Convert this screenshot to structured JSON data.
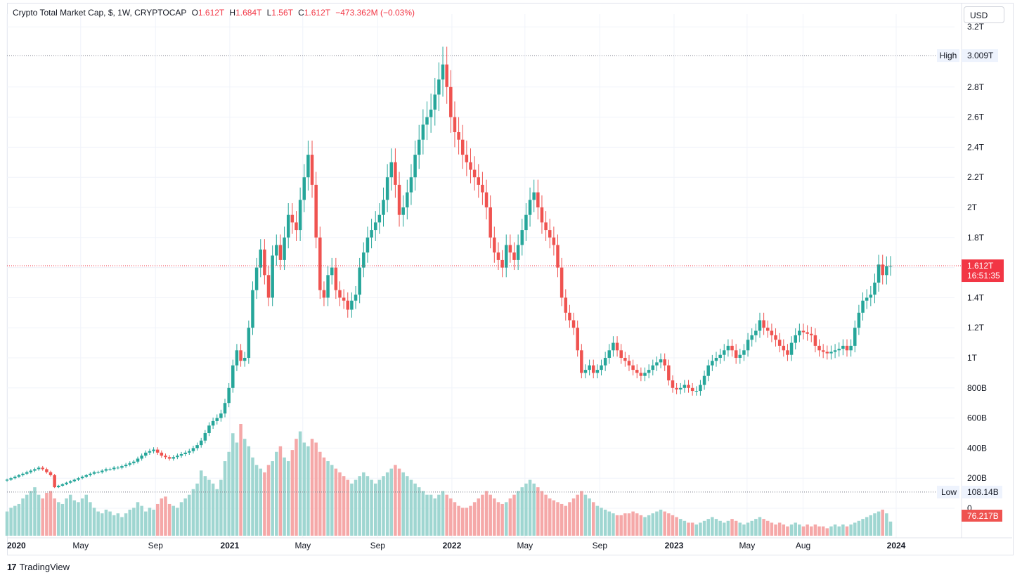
{
  "legend": {
    "title": "Crypto Total Market Cap, $, 1W, CRYPTOCAP",
    "open_label": "O",
    "open": "1.612T",
    "high_label": "H",
    "high": "1.684T",
    "low_label": "L",
    "low": "1.56T",
    "close_label": "C",
    "close": "1.612T",
    "change": "−473.362M (−0.03%)"
  },
  "currency": "USD",
  "footer": {
    "brand": "TradingView",
    "logo": "17"
  },
  "colors": {
    "up": "#26a69a",
    "down": "#ef5350",
    "up_volume": "#9fd6d1",
    "down_volume": "#f5a8a8",
    "grid": "#f0f3fa"
  },
  "chart_data": {
    "type": "candlestick",
    "interval": "1W",
    "x_range": [
      "2020-01-01",
      "2024-01-01"
    ],
    "y_range": [
      0,
      3.2
    ],
    "y_unit": "trillion USD",
    "y_ticks": [
      "0",
      "200B",
      "400B",
      "600B",
      "800B",
      "1T",
      "1.2T",
      "1.4T",
      "1.6T",
      "1.8T",
      "2T",
      "2.2T",
      "2.4T",
      "2.6T",
      "2.8T",
      "3.2T"
    ],
    "x_ticks": [
      {
        "label": "2020",
        "date": "2020-01-01",
        "bold": true
      },
      {
        "label": "May",
        "date": "2020-05-01",
        "bold": false
      },
      {
        "label": "Sep",
        "date": "2020-09-01",
        "bold": false
      },
      {
        "label": "2021",
        "date": "2021-01-01",
        "bold": true
      },
      {
        "label": "May",
        "date": "2021-05-01",
        "bold": false
      },
      {
        "label": "Sep",
        "date": "2021-09-01",
        "bold": false
      },
      {
        "label": "2022",
        "date": "2022-01-01",
        "bold": true
      },
      {
        "label": "May",
        "date": "2022-05-01",
        "bold": false
      },
      {
        "label": "Sep",
        "date": "2022-09-01",
        "bold": false
      },
      {
        "label": "2023",
        "date": "2023-01-01",
        "bold": true
      },
      {
        "label": "May",
        "date": "2023-05-01",
        "bold": false
      },
      {
        "label": "Aug",
        "date": "2023-08-01",
        "bold": false
      },
      {
        "label": "2024",
        "date": "2024-01-01",
        "bold": true
      }
    ],
    "high_marker": {
      "label": "High",
      "value": "3.009T",
      "y": 3.009
    },
    "low_marker": {
      "label": "Low",
      "value": "108.14B",
      "y": 0.108
    },
    "last_price": {
      "value": "1.612T",
      "countdown": "16:51:35",
      "y": 1.612
    },
    "last_volume": {
      "value": "76.217B"
    },
    "closes": [
      0.19,
      0.2,
      0.21,
      0.22,
      0.23,
      0.24,
      0.25,
      0.26,
      0.27,
      0.26,
      0.24,
      0.22,
      0.14,
      0.15,
      0.16,
      0.17,
      0.18,
      0.19,
      0.2,
      0.21,
      0.22,
      0.23,
      0.24,
      0.24,
      0.25,
      0.26,
      0.26,
      0.27,
      0.27,
      0.28,
      0.29,
      0.3,
      0.31,
      0.33,
      0.35,
      0.37,
      0.38,
      0.39,
      0.37,
      0.35,
      0.34,
      0.33,
      0.34,
      0.35,
      0.36,
      0.37,
      0.38,
      0.4,
      0.42,
      0.45,
      0.5,
      0.55,
      0.58,
      0.6,
      0.63,
      0.7,
      0.8,
      0.95,
      1.05,
      0.98,
      1.0,
      1.2,
      1.45,
      1.6,
      1.72,
      1.55,
      1.4,
      1.68,
      1.75,
      1.65,
      1.8,
      1.95,
      1.9,
      1.85,
      2.05,
      2.2,
      2.35,
      2.15,
      1.8,
      1.45,
      1.4,
      1.55,
      1.6,
      1.45,
      1.4,
      1.38,
      1.32,
      1.38,
      1.42,
      1.6,
      1.7,
      1.8,
      1.85,
      1.9,
      1.95,
      2.05,
      2.2,
      2.3,
      2.15,
      1.95,
      2.0,
      2.1,
      2.2,
      2.35,
      2.45,
      2.55,
      2.6,
      2.65,
      2.75,
      2.85,
      2.95,
      2.8,
      2.6,
      2.5,
      2.45,
      2.35,
      2.3,
      2.25,
      2.2,
      2.15,
      2.1,
      2.0,
      1.8,
      1.7,
      1.65,
      1.6,
      1.75,
      1.7,
      1.65,
      1.75,
      1.85,
      1.95,
      2.05,
      2.1,
      2.0,
      1.9,
      1.85,
      1.8,
      1.75,
      1.6,
      1.4,
      1.3,
      1.25,
      1.2,
      1.05,
      0.9,
      0.92,
      0.95,
      0.9,
      0.92,
      0.95,
      1.0,
      1.05,
      1.1,
      1.05,
      1.0,
      0.98,
      0.95,
      0.92,
      0.9,
      0.88,
      0.9,
      0.92,
      0.95,
      0.97,
      0.99,
      0.95,
      0.85,
      0.8,
      0.79,
      0.8,
      0.82,
      0.8,
      0.78,
      0.78,
      0.82,
      0.88,
      0.95,
      0.98,
      1.0,
      1.02,
      1.05,
      1.08,
      1.05,
      1.0,
      1.02,
      1.05,
      1.12,
      1.15,
      1.18,
      1.25,
      1.2,
      1.18,
      1.15,
      1.12,
      1.08,
      1.05,
      1.02,
      1.1,
      1.15,
      1.18,
      1.17,
      1.16,
      1.15,
      1.08,
      1.05,
      1.04,
      1.03,
      1.04,
      1.05,
      1.06,
      1.08,
      1.05,
      1.08,
      1.2,
      1.3,
      1.38,
      1.4,
      1.42,
      1.5,
      1.62,
      1.55,
      1.61,
      1.612
    ],
    "volumes": [
      0.13,
      0.15,
      0.16,
      0.17,
      0.2,
      0.22,
      0.24,
      0.26,
      0.22,
      0.2,
      0.23,
      0.24,
      0.2,
      0.18,
      0.17,
      0.2,
      0.22,
      0.19,
      0.18,
      0.2,
      0.22,
      0.18,
      0.15,
      0.13,
      0.12,
      0.14,
      0.13,
      0.11,
      0.12,
      0.1,
      0.12,
      0.14,
      0.15,
      0.18,
      0.16,
      0.13,
      0.15,
      0.14,
      0.17,
      0.2,
      0.21,
      0.17,
      0.16,
      0.15,
      0.18,
      0.2,
      0.22,
      0.25,
      0.28,
      0.35,
      0.32,
      0.3,
      0.28,
      0.25,
      0.3,
      0.4,
      0.45,
      0.55,
      0.5,
      0.6,
      0.52,
      0.48,
      0.42,
      0.38,
      0.36,
      0.34,
      0.38,
      0.4,
      0.45,
      0.48,
      0.42,
      0.4,
      0.46,
      0.52,
      0.56,
      0.5,
      0.48,
      0.52,
      0.5,
      0.45,
      0.42,
      0.4,
      0.38,
      0.36,
      0.34,
      0.32,
      0.3,
      0.28,
      0.3,
      0.32,
      0.34,
      0.32,
      0.3,
      0.28,
      0.3,
      0.32,
      0.34,
      0.36,
      0.38,
      0.36,
      0.34,
      0.32,
      0.3,
      0.28,
      0.26,
      0.24,
      0.22,
      0.22,
      0.2,
      0.22,
      0.24,
      0.22,
      0.2,
      0.18,
      0.16,
      0.15,
      0.15,
      0.16,
      0.18,
      0.2,
      0.22,
      0.24,
      0.22,
      0.2,
      0.18,
      0.17,
      0.18,
      0.2,
      0.22,
      0.24,
      0.26,
      0.28,
      0.3,
      0.28,
      0.26,
      0.24,
      0.22,
      0.2,
      0.19,
      0.18,
      0.17,
      0.16,
      0.18,
      0.2,
      0.22,
      0.24,
      0.22,
      0.2,
      0.18,
      0.16,
      0.15,
      0.14,
      0.13,
      0.12,
      0.11,
      0.11,
      0.12,
      0.12,
      0.13,
      0.12,
      0.11,
      0.1,
      0.11,
      0.12,
      0.13,
      0.14,
      0.13,
      0.12,
      0.11,
      0.1,
      0.09,
      0.08,
      0.07,
      0.07,
      0.06,
      0.07,
      0.08,
      0.09,
      0.1,
      0.09,
      0.08,
      0.07,
      0.08,
      0.09,
      0.08,
      0.07,
      0.06,
      0.07,
      0.08,
      0.09,
      0.1,
      0.09,
      0.08,
      0.07,
      0.06,
      0.07,
      0.06,
      0.05,
      0.06,
      0.07,
      0.06,
      0.05,
      0.06,
      0.05,
      0.06,
      0.05,
      0.05,
      0.04,
      0.05,
      0.06,
      0.05,
      0.06,
      0.05,
      0.06,
      0.07,
      0.08,
      0.09,
      0.1,
      0.11,
      0.12,
      0.13,
      0.14,
      0.12,
      0.076
    ]
  }
}
